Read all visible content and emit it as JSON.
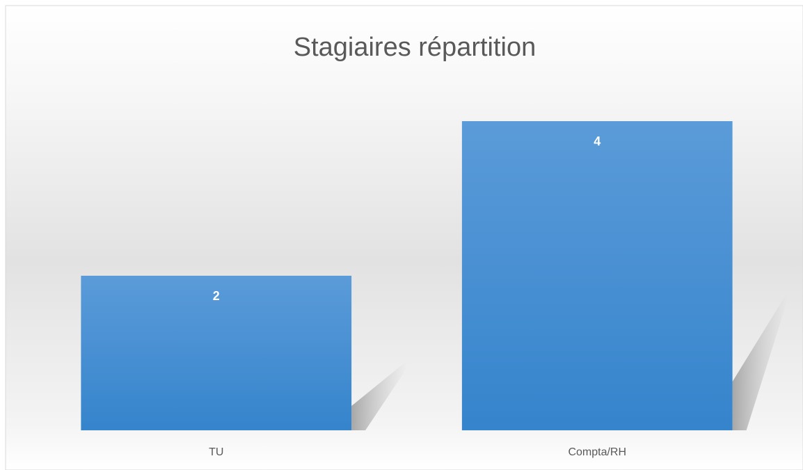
{
  "chart_data": {
    "type": "bar",
    "title": "Stagiaires répartition",
    "categories": [
      "TU",
      "Compta/RH"
    ],
    "values": [
      2,
      4
    ],
    "color": "#3f8bd2",
    "ylim": [
      0,
      4.5
    ],
    "grid": false
  }
}
